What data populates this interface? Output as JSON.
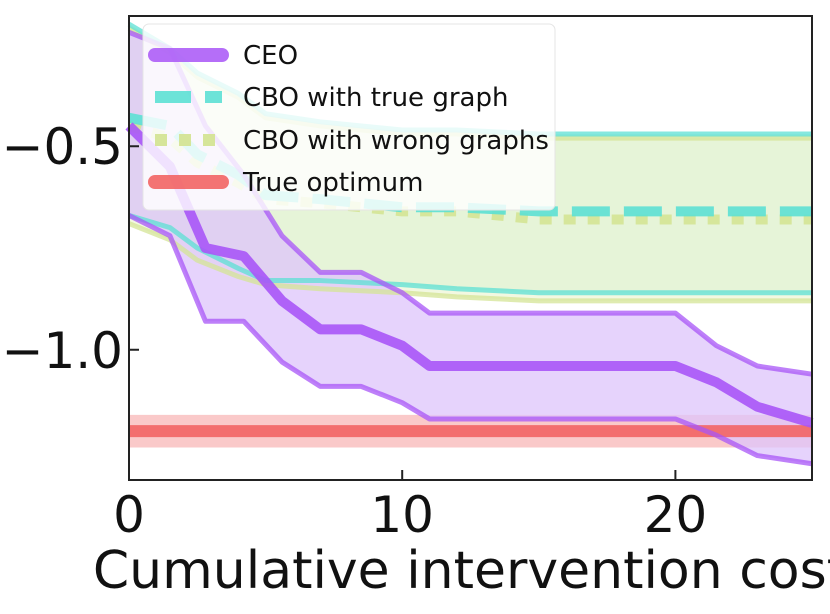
{
  "chart_data": {
    "type": "line",
    "title": "",
    "xlabel": "Cumulative intervention cost",
    "ylabel": "",
    "xlim": [
      0,
      25
    ],
    "ylim": [
      -1.32,
      -0.18
    ],
    "xticks": [
      0,
      10,
      20
    ],
    "xtick_labels": [
      "0",
      "10",
      "20"
    ],
    "yticks": [
      -0.5,
      -1.0
    ],
    "ytick_labels": [
      "−0.5",
      "−1.0"
    ],
    "grid": false,
    "legend_position": "top-left",
    "series": [
      {
        "name": "CEO",
        "color": "#a855f7",
        "band_color": "#ddc4fb",
        "style": "solid",
        "x": [
          0,
          1.5,
          2.8,
          4.2,
          5.6,
          7,
          8.5,
          10,
          11,
          15,
          20,
          21.5,
          23,
          25
        ],
        "mean": [
          -0.45,
          -0.55,
          -0.75,
          -0.77,
          -0.88,
          -0.95,
          -0.95,
          -0.99,
          -1.04,
          -1.04,
          -1.04,
          -1.08,
          -1.14,
          -1.18
        ],
        "upper": [
          -0.22,
          -0.26,
          -0.45,
          -0.57,
          -0.72,
          -0.81,
          -0.81,
          -0.86,
          -0.91,
          -0.91,
          -0.91,
          -0.99,
          -1.04,
          -1.06
        ],
        "lower": [
          -0.67,
          -0.72,
          -0.93,
          -0.93,
          -1.03,
          -1.09,
          -1.09,
          -1.13,
          -1.17,
          -1.17,
          -1.17,
          -1.21,
          -1.26,
          -1.28
        ]
      },
      {
        "name": "CBO with true graph",
        "color": "#5ce0d4",
        "band_color": "#cdeed9",
        "style": "dashed",
        "x": [
          0,
          1.5,
          2.5,
          4,
          5,
          7,
          10,
          12,
          15,
          20,
          25
        ],
        "mean": [
          -0.43,
          -0.45,
          -0.52,
          -0.57,
          -0.62,
          -0.63,
          -0.65,
          -0.65,
          -0.66,
          -0.66,
          -0.66
        ],
        "upper": [
          -0.2,
          -0.26,
          -0.32,
          -0.37,
          -0.42,
          -0.44,
          -0.46,
          -0.46,
          -0.47,
          -0.47,
          -0.47
        ],
        "lower": [
          -0.67,
          -0.7,
          -0.75,
          -0.8,
          -0.83,
          -0.83,
          -0.84,
          -0.85,
          -0.86,
          -0.86,
          -0.86
        ]
      },
      {
        "name": "CBO with wrong graphs",
        "color": "#d4e495",
        "band_color": "#e8f2c8",
        "style": "dotted",
        "x": [
          0,
          1.5,
          2.5,
          4,
          5,
          7,
          10,
          12,
          15,
          20,
          25
        ],
        "mean": [
          -0.45,
          -0.48,
          -0.54,
          -0.59,
          -0.63,
          -0.64,
          -0.66,
          -0.66,
          -0.68,
          -0.68,
          -0.68
        ],
        "upper": [
          -0.21,
          -0.27,
          -0.33,
          -0.38,
          -0.43,
          -0.45,
          -0.47,
          -0.47,
          -0.48,
          -0.48,
          -0.48
        ],
        "lower": [
          -0.69,
          -0.73,
          -0.78,
          -0.82,
          -0.84,
          -0.85,
          -0.86,
          -0.87,
          -0.88,
          -0.88,
          -0.88
        ]
      },
      {
        "name": "True optimum",
        "color": "#f26464",
        "band_color": "#f9bcbc",
        "style": "solid",
        "x": [
          0,
          25
        ],
        "mean": [
          -1.2,
          -1.2
        ],
        "upper": [
          -1.16,
          -1.16
        ],
        "lower": [
          -1.24,
          -1.24
        ]
      }
    ]
  }
}
